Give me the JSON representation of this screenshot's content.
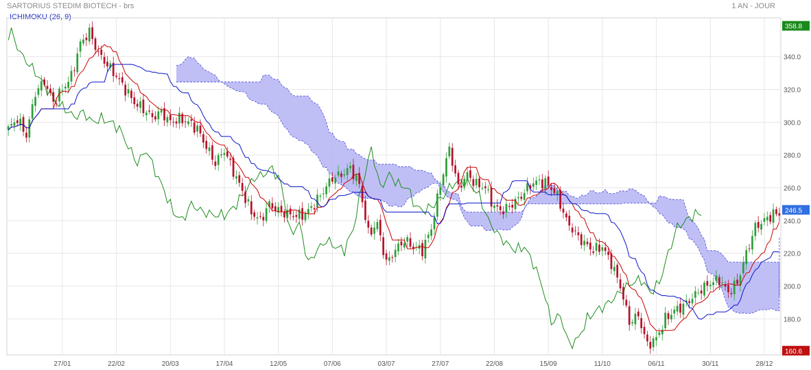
{
  "header": {
    "title": "SARTORIUS STEDIM BIOTECH - brs",
    "timeframe": "1 AN - JOUR",
    "indicator": "ICHIMOKU (26, 9)"
  },
  "colors": {
    "up": "#2e9e3a",
    "down": "#b5122a",
    "tenkan": "#cc0000",
    "kijun": "#0a14c8",
    "chikou": "#1e8c1e",
    "cloud_fill": "#b4b4f5",
    "cloud_edge": "#4848d8",
    "grid": "#e6e6e6"
  },
  "badges": [
    {
      "label": "358.8",
      "value": 358.8,
      "color": "#1a8a1a"
    },
    {
      "label": "246.5",
      "value": 246.5,
      "color": "#2f6fe0"
    },
    {
      "label": "160.6",
      "value": 160.6,
      "color": "#c01010"
    }
  ],
  "chart_data": {
    "type": "candlestick",
    "x_labels": [
      "27/01",
      "22/02",
      "20/03",
      "17/04",
      "12/05",
      "07/06",
      "03/07",
      "27/07",
      "22/08",
      "15/09",
      "11/10",
      "06/11",
      "30/11",
      "28/12"
    ],
    "x_label_index": [
      18,
      36,
      54,
      72,
      90,
      108,
      126,
      144,
      162,
      180,
      198,
      216,
      234,
      252
    ],
    "ylim": [
      158,
      362
    ],
    "y_ticks": [
      180,
      200,
      220,
      240,
      260,
      280,
      300,
      320,
      340
    ],
    "close_anchors": [
      [
        0,
        296
      ],
      [
        3,
        302
      ],
      [
        6,
        292
      ],
      [
        9,
        318
      ],
      [
        12,
        325
      ],
      [
        15,
        312
      ],
      [
        18,
        320
      ],
      [
        21,
        328
      ],
      [
        24,
        348
      ],
      [
        27,
        355
      ],
      [
        30,
        342
      ],
      [
        33,
        335
      ],
      [
        36,
        328
      ],
      [
        39,
        320
      ],
      [
        42,
        312
      ],
      [
        45,
        308
      ],
      [
        48,
        303
      ],
      [
        51,
        306
      ],
      [
        54,
        300
      ],
      [
        57,
        302
      ],
      [
        60,
        300
      ],
      [
        63,
        296
      ],
      [
        66,
        285
      ],
      [
        69,
        275
      ],
      [
        72,
        283
      ],
      [
        75,
        270
      ],
      [
        78,
        258
      ],
      [
        81,
        245
      ],
      [
        84,
        240
      ],
      [
        87,
        250
      ],
      [
        90,
        246
      ],
      [
        93,
        244
      ],
      [
        96,
        243
      ],
      [
        99,
        244
      ],
      [
        102,
        250
      ],
      [
        105,
        258
      ],
      [
        108,
        266
      ],
      [
        111,
        268
      ],
      [
        114,
        272
      ],
      [
        117,
        262
      ],
      [
        120,
        232
      ],
      [
        123,
        238
      ],
      [
        126,
        214
      ],
      [
        129,
        222
      ],
      [
        132,
        228
      ],
      [
        135,
        224
      ],
      [
        138,
        222
      ],
      [
        141,
        235
      ],
      [
        144,
        262
      ],
      [
        147,
        284
      ],
      [
        150,
        260
      ],
      [
        153,
        268
      ],
      [
        156,
        262
      ],
      [
        159,
        260
      ],
      [
        162,
        248
      ],
      [
        165,
        246
      ],
      [
        168,
        250
      ],
      [
        171,
        255
      ],
      [
        174,
        262
      ],
      [
        177,
        264
      ],
      [
        180,
        262
      ],
      [
        183,
        255
      ],
      [
        186,
        240
      ],
      [
        189,
        232
      ],
      [
        192,
        226
      ],
      [
        195,
        222
      ],
      [
        198,
        224
      ],
      [
        201,
        214
      ],
      [
        204,
        200
      ],
      [
        207,
        178
      ],
      [
        210,
        182
      ],
      [
        213,
        164
      ],
      [
        216,
        168
      ],
      [
        219,
        180
      ],
      [
        222,
        185
      ],
      [
        225,
        188
      ],
      [
        228,
        193
      ],
      [
        231,
        198
      ],
      [
        234,
        202
      ],
      [
        237,
        204
      ],
      [
        240,
        196
      ],
      [
        243,
        202
      ],
      [
        246,
        220
      ],
      [
        249,
        236
      ],
      [
        252,
        240
      ],
      [
        255,
        244
      ]
    ]
  }
}
